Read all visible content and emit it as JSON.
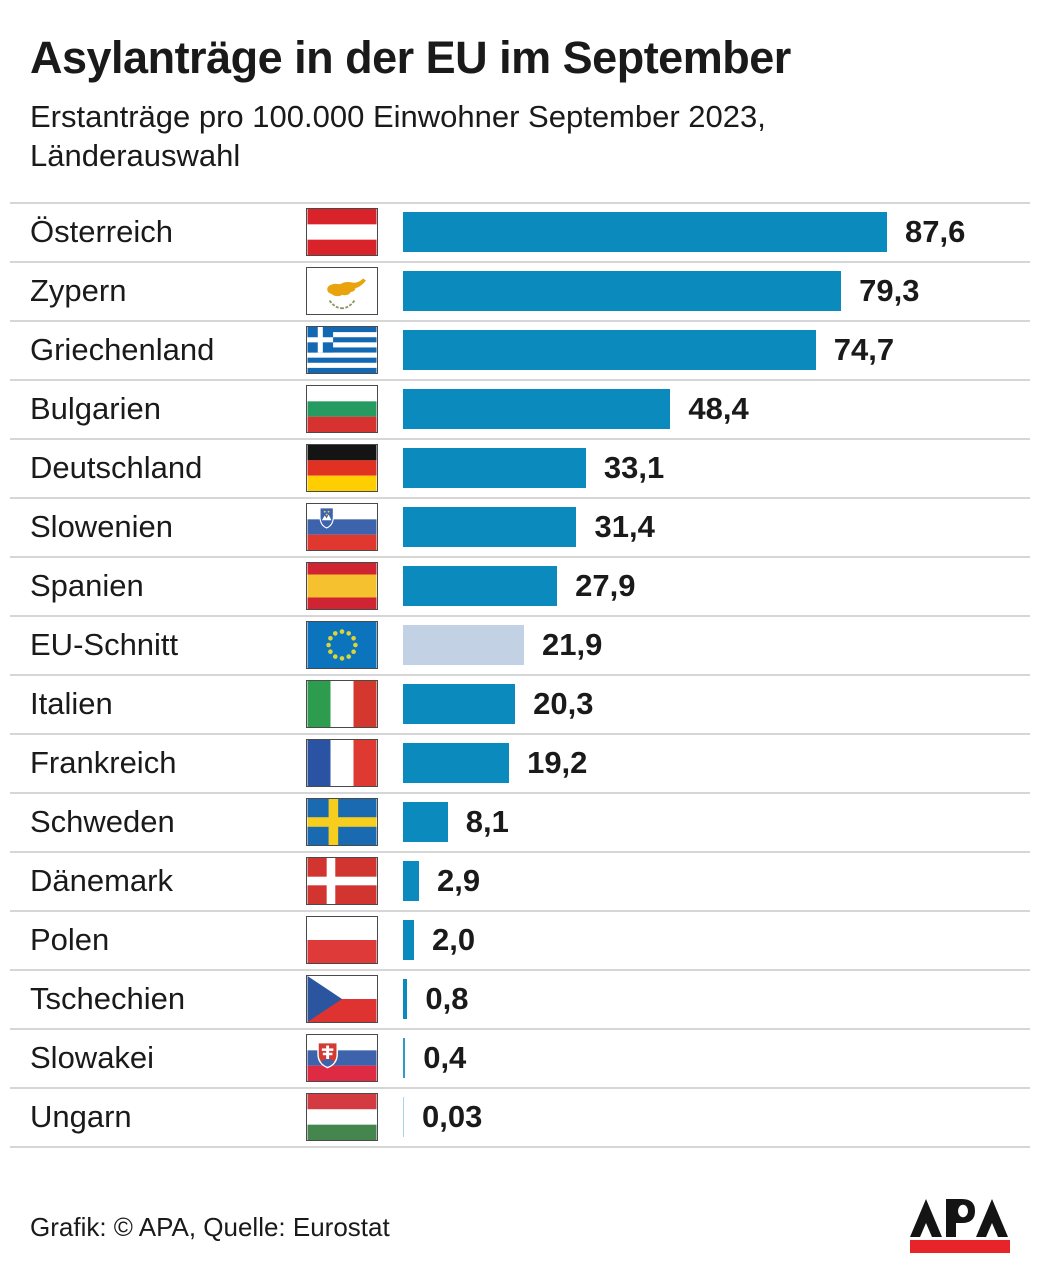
{
  "header": {
    "title": "Asylanträge in der EU im September",
    "subtitle_line1": "Erstanträge pro 100.000 Einwohner September 2023,",
    "subtitle_line2": "Länderauswahl"
  },
  "chart_data": {
    "type": "bar",
    "orientation": "horizontal",
    "title": "Asylanträge in der EU im September",
    "subtitle": "Erstanträge pro 100.000 Einwohner September 2023, Länderauswahl",
    "unit": "Erstanträge pro 100.000 Einwohner",
    "xlim": [
      0,
      87.6
    ],
    "grid": false,
    "legend": false,
    "bar_color": "#0a8abd",
    "muted_bar_color": "#c2d1e3",
    "separator_color": "#d6d6d6",
    "rows": [
      {
        "label": "Österreich",
        "flag": "austria",
        "value": 87.6,
        "value_label": "87,6"
      },
      {
        "label": "Zypern",
        "flag": "cyprus",
        "value": 79.3,
        "value_label": "79,3"
      },
      {
        "label": "Griechenland",
        "flag": "greece",
        "value": 74.7,
        "value_label": "74,7"
      },
      {
        "label": "Bulgarien",
        "flag": "bulgaria",
        "value": 48.4,
        "value_label": "48,4"
      },
      {
        "label": "Deutschland",
        "flag": "germany",
        "value": 33.1,
        "value_label": "33,1"
      },
      {
        "label": "Slowenien",
        "flag": "slovenia",
        "value": 31.4,
        "value_label": "31,4"
      },
      {
        "label": "Spanien",
        "flag": "spain",
        "value": 27.9,
        "value_label": "27,9"
      },
      {
        "label": "EU-Schnitt",
        "flag": "european-union",
        "value": 21.9,
        "value_label": "21,9",
        "muted": true
      },
      {
        "label": "Italien",
        "flag": "italy",
        "value": 20.3,
        "value_label": "20,3"
      },
      {
        "label": "Frankreich",
        "flag": "france",
        "value": 19.2,
        "value_label": "19,2"
      },
      {
        "label": "Schweden",
        "flag": "sweden",
        "value": 8.1,
        "value_label": "8,1"
      },
      {
        "label": "Dänemark",
        "flag": "denmark",
        "value": 2.9,
        "value_label": "2,9"
      },
      {
        "label": "Polen",
        "flag": "poland",
        "value": 2.0,
        "value_label": "2,0"
      },
      {
        "label": "Tschechien",
        "flag": "czechia",
        "value": 0.8,
        "value_label": "0,8"
      },
      {
        "label": "Slowakei",
        "flag": "slovakia",
        "value": 0.4,
        "value_label": "0,4"
      },
      {
        "label": "Ungarn",
        "flag": "hungary",
        "value": 0.03,
        "value_label": "0,03"
      }
    ]
  },
  "footer": {
    "credit": "Grafik: © APA, Quelle: Eurostat",
    "logo_text": "APA",
    "logo_red": "#e8232a"
  }
}
